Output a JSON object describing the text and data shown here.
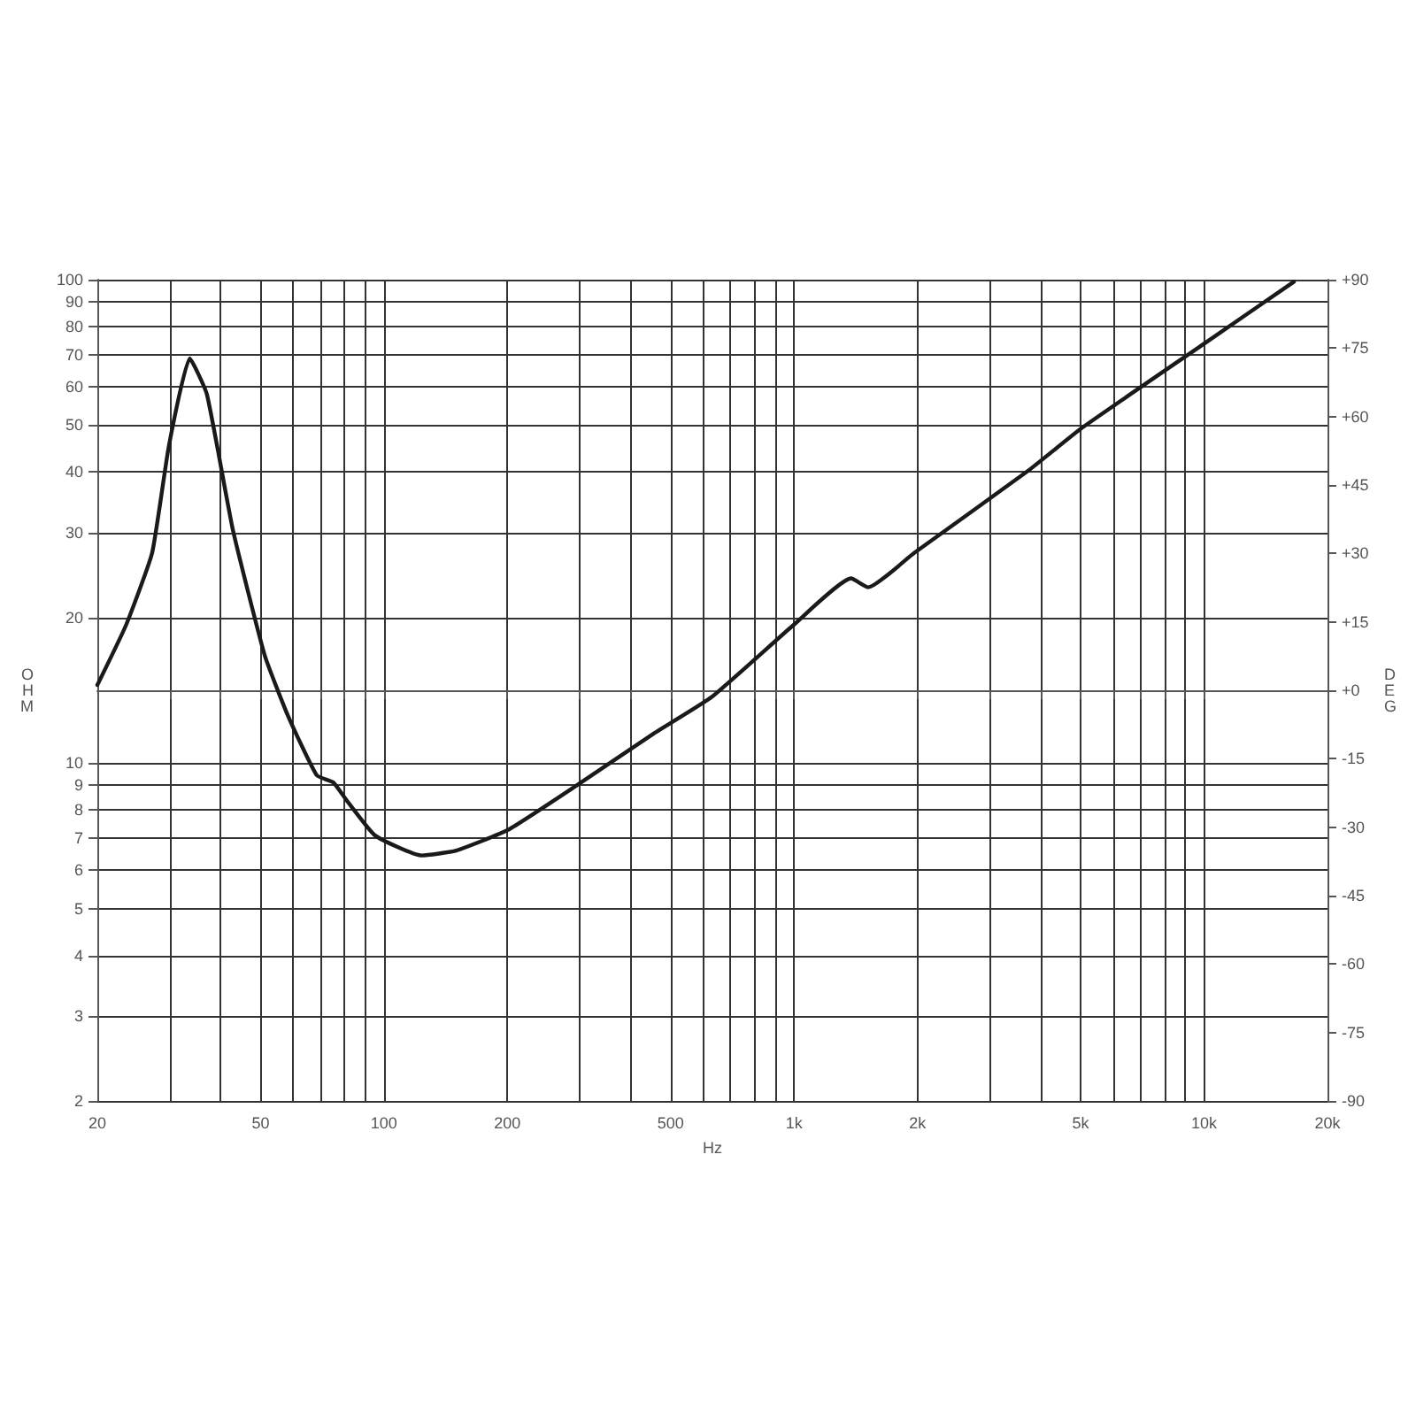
{
  "chart_data": {
    "type": "line",
    "xlabel": "Hz",
    "ylabel": "OHM",
    "y2label": "DEG",
    "log": "xy",
    "grid": true,
    "marker": "none",
    "line_style": "solid",
    "x": [
      20,
      23.5,
      27.2,
      29.9,
      33.6,
      37,
      42.8,
      51.2,
      58.4,
      68.6,
      75.2,
      80.8,
      95.2,
      123.6,
      150,
      201,
      298,
      454,
      630,
      997,
      1378,
      1516,
      1964,
      3760,
      5060,
      10020,
      16560
    ],
    "series": [
      {
        "color": "#1a1a1a",
        "values": [
          14.5,
          19.3,
          27.2,
          45.4,
          68.7,
          57.9,
          30.4,
          16.7,
          12.5,
          9.43,
          9.12,
          8.41,
          7.08,
          6.44,
          6.59,
          7.28,
          9.04,
          11.5,
          13.7,
          19.3,
          24.1,
          23.1,
          27.2,
          40.5,
          49.5,
          73.8,
          99
        ]
      }
    ],
    "xlim": [
      20,
      20000
    ],
    "xticks": [
      20,
      {
        "value": 30,
        "label": null
      },
      {
        "value": 40,
        "label": null
      },
      50,
      {
        "value": 60,
        "label": null
      },
      {
        "value": 70,
        "label": null
      },
      {
        "value": 80,
        "label": null
      },
      {
        "value": 90,
        "label": null
      },
      100,
      200,
      {
        "value": 300,
        "label": null
      },
      {
        "value": 400,
        "label": null
      },
      500,
      {
        "value": 600,
        "label": null
      },
      {
        "value": 700,
        "label": null
      },
      {
        "value": 800,
        "label": null
      },
      {
        "value": 900,
        "label": null
      },
      {
        "value": 1000,
        "label": "1k"
      },
      {
        "value": 2000,
        "label": "2k"
      },
      {
        "value": 3000,
        "label": null
      },
      {
        "value": 4000,
        "label": null
      },
      {
        "value": 5000,
        "label": "5k"
      },
      {
        "value": 6000,
        "label": null
      },
      {
        "value": 7000,
        "label": null
      },
      {
        "value": 8000,
        "label": null
      },
      {
        "value": 9000,
        "label": null
      },
      {
        "value": 10000,
        "label": "10k"
      },
      {
        "value": 20000,
        "label": "20k"
      }
    ],
    "ylim": [
      2,
      100
    ],
    "yticks": [
      2,
      3,
      4,
      5,
      6,
      7,
      8,
      9,
      10,
      20,
      30,
      40,
      50,
      60,
      70,
      80,
      90,
      100
    ],
    "y2lim": [
      -90,
      90
    ],
    "y2ticks": [
      -90,
      -75,
      -60,
      -45,
      -30,
      -15,
      {
        "value": 0,
        "label": "+0"
      },
      {
        "value": 15,
        "label": "+15"
      },
      {
        "value": 30,
        "label": "+30"
      },
      {
        "value": 45,
        "label": "+45"
      },
      {
        "value": 60,
        "label": "+60"
      },
      {
        "value": 75,
        "label": "+75"
      },
      {
        "value": 90,
        "label": "+90"
      }
    ]
  }
}
